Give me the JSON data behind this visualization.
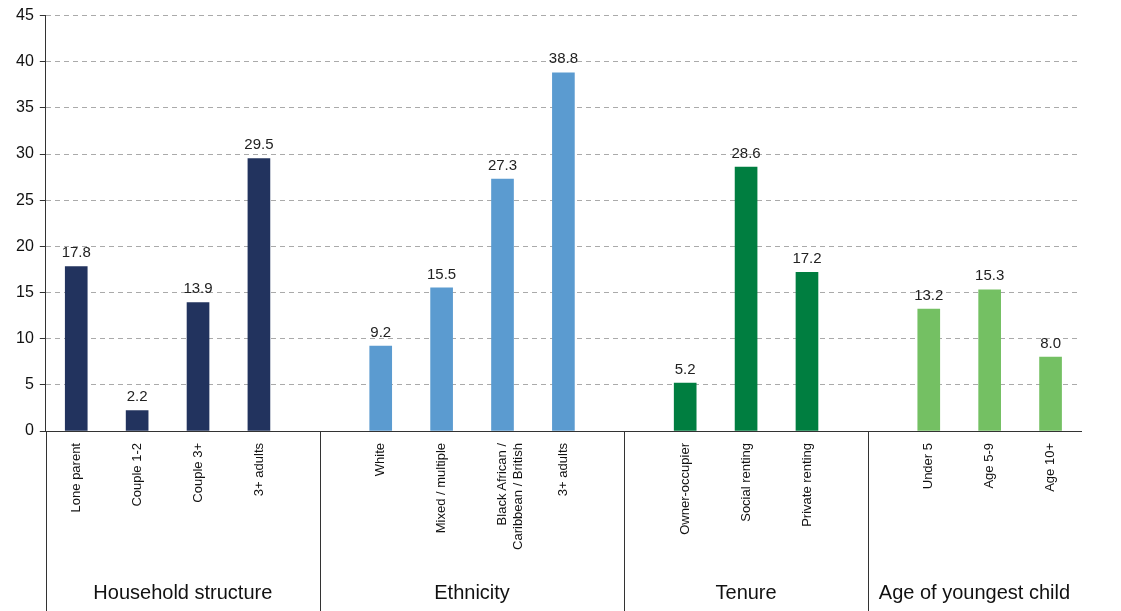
{
  "chart_data": {
    "type": "bar",
    "categories": [
      "Lone parent",
      "Couple 1-2",
      "Couple 3+",
      "3+ adults",
      null,
      "White",
      "Mixed / multiple",
      "Black African / Caribbean / British",
      "3+ adults",
      null,
      "Owner-occupier",
      "Social renting",
      "Private renting",
      null,
      "Under 5",
      "Age 5-9",
      "Age 10+"
    ],
    "values": [
      17.8,
      2.2,
      13.9,
      29.5,
      null,
      9.2,
      15.5,
      27.3,
      38.8,
      null,
      5.2,
      28.6,
      17.2,
      null,
      13.2,
      15.3,
      8.0
    ],
    "value_labels": [
      "17.8",
      "2.2",
      "13.9",
      "29.5",
      null,
      "9.2",
      "15.5",
      "27.3",
      "38.8",
      null,
      "5.2",
      "28.6",
      "17.2",
      null,
      "13.2",
      "15.3",
      "8.0"
    ],
    "colors": [
      "#22335e",
      "#22335e",
      "#22335e",
      "#22335e",
      null,
      "#5b9bd0",
      "#5b9bd0",
      "#5b9bd0",
      "#5b9bd0",
      null,
      "#007e40",
      "#007e40",
      "#007e40",
      null,
      "#74c063",
      "#74c063",
      "#74c063"
    ],
    "ylim": [
      0,
      45
    ],
    "yticks": [
      0,
      5,
      10,
      15,
      20,
      25,
      30,
      35,
      40,
      45
    ],
    "grid": "y",
    "annotations": [
      "Household structure",
      "Ethnicity",
      "Tenure",
      "Age of youngest child"
    ]
  }
}
